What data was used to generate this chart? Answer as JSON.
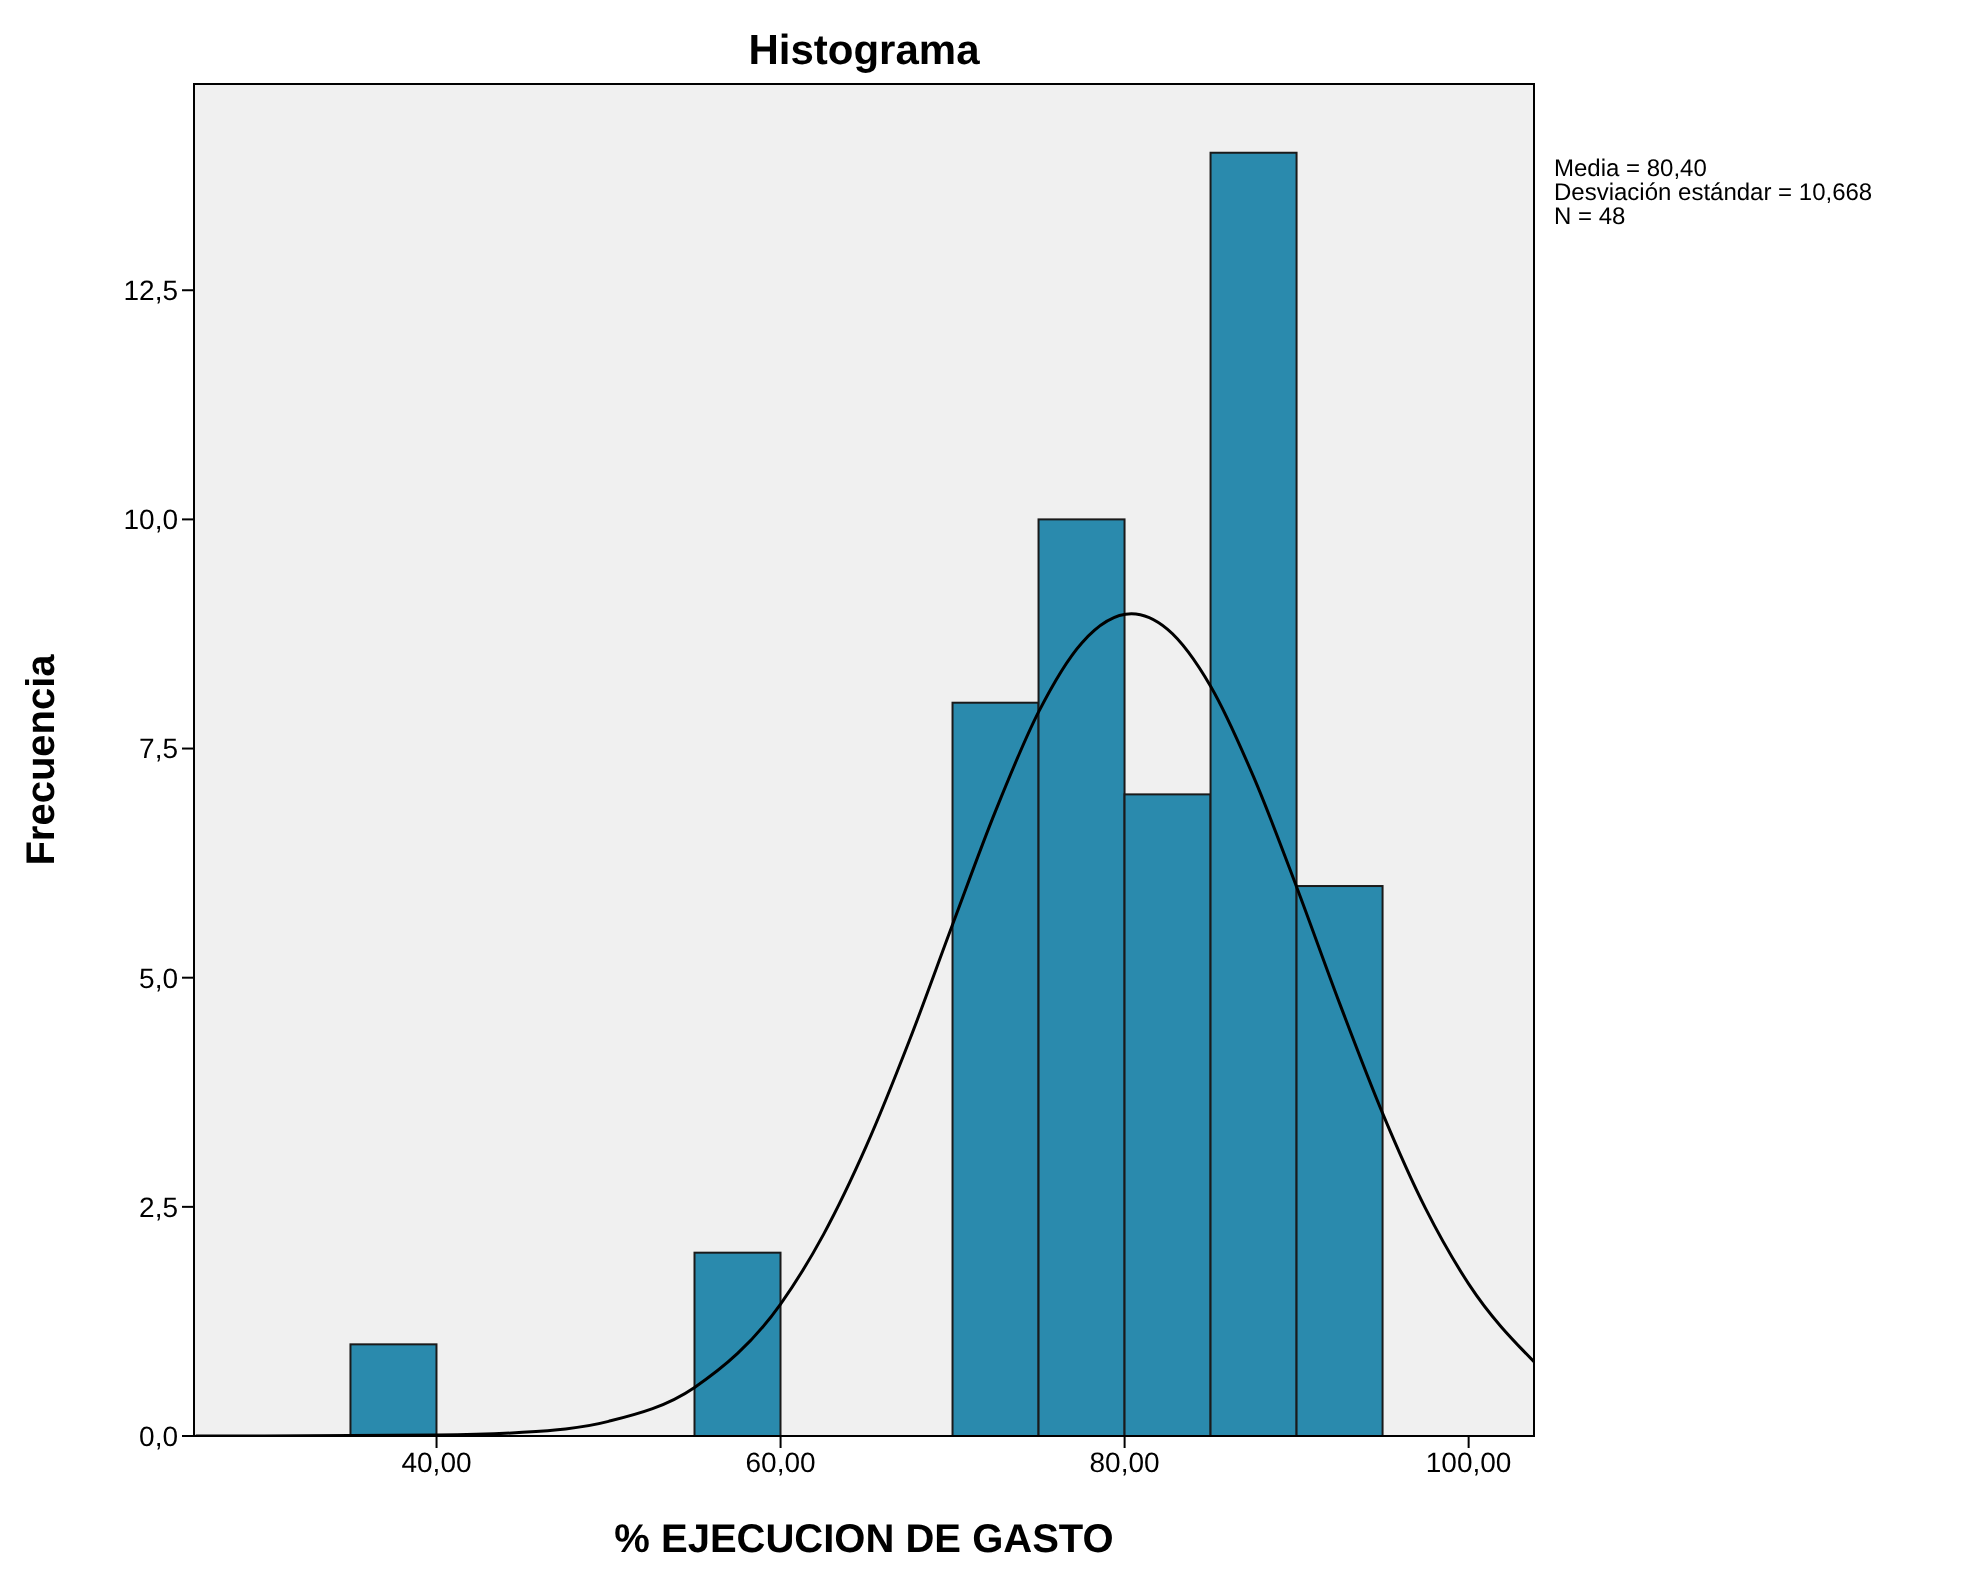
{
  "chart_data": {
    "type": "histogram",
    "title": "Histograma",
    "xlabel": "% EJECUCION DE GASTO",
    "ylabel": "Frecuencia",
    "bins": [
      35,
      40,
      45,
      50,
      55,
      60,
      65,
      70,
      75,
      80,
      85,
      90,
      95
    ],
    "values": [
      1,
      0,
      0,
      0,
      2,
      0,
      0,
      8,
      10,
      7,
      14,
      6
    ],
    "color": "#2a8aad",
    "series": [
      {
        "type": "line",
        "color": "#000000",
        "x": [
          26,
          30,
          40,
          45,
          50,
          55,
          60,
          62.5,
          65,
          67.5,
          70,
          72.5,
          75,
          77.5,
          80.4,
          82.5,
          85,
          87.5,
          90,
          92.5,
          95,
          97.5,
          100,
          103.8
        ],
        "values": [
          0,
          0,
          0.01,
          0.04,
          0.16,
          0.53,
          1.44,
          2.2,
          3.17,
          4.32,
          5.58,
          6.82,
          7.9,
          8.65,
          8.97,
          8.8,
          8.18,
          7.19,
          5.99,
          4.72,
          3.52,
          2.48,
          1.66,
          0.81
        ]
      }
    ],
    "xlim": [
      25.9,
      103.8
    ],
    "xticks": [
      {
        "value": 40,
        "label": "40,00"
      },
      {
        "value": 60,
        "label": "60,00"
      },
      {
        "value": 80,
        "label": "80,00"
      },
      {
        "value": 100,
        "label": "100,00"
      }
    ],
    "ylim": [
      0,
      14.75
    ],
    "yticks": [
      {
        "value": 0,
        "label": "0,0"
      },
      {
        "value": 2.5,
        "label": "2,5"
      },
      {
        "value": 5,
        "label": "5,0"
      },
      {
        "value": 7.5,
        "label": "7,5"
      },
      {
        "value": 10,
        "label": "10,0"
      },
      {
        "value": 12.5,
        "label": "12,5"
      }
    ],
    "annotations": [
      "Media = 80,40",
      "Desviación estándar = 10,668",
      "N = 48"
    ],
    "marker": "none",
    "line_style": "solid"
  }
}
